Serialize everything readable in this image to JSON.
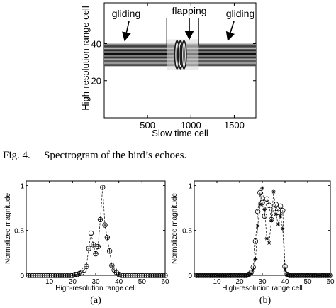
{
  "chart_data": [
    {
      "type": "heatmap",
      "panel": "fig4",
      "xlabel": "Slow time cell",
      "ylabel": "High-resolution range cell",
      "xlim": [
        0,
        1750
      ],
      "ylim": [
        0,
        62
      ],
      "xticks": [
        500,
        1000,
        1500
      ],
      "yticks": [
        20,
        40
      ],
      "annotations": [
        "gliding",
        "flapping",
        "gliding"
      ],
      "segment_boundaries_x": [
        720,
        1090
      ],
      "echo_band_y": [
        28,
        40
      ],
      "flapping_peaks_x": [
        840,
        880,
        920
      ]
    },
    {
      "type": "scatter",
      "panel": "a",
      "xlabel": "High-resolution range cell",
      "ylabel": "Normalized magnitude",
      "xlim": [
        0,
        60
      ],
      "ylim": [
        0,
        1.05
      ],
      "xticks": [
        10,
        20,
        30,
        40,
        50,
        60
      ],
      "yticks": [
        0,
        0.5,
        1
      ],
      "series": [
        {
          "marker": "circle-plus",
          "x": [
            1,
            2,
            3,
            4,
            5,
            6,
            7,
            8,
            9,
            10,
            11,
            12,
            13,
            14,
            15,
            16,
            17,
            18,
            19,
            20,
            21,
            22,
            23,
            24,
            25,
            26,
            27,
            28,
            29,
            30,
            31,
            32,
            33,
            34,
            35,
            36,
            37,
            38,
            39,
            40,
            41,
            42,
            43,
            44,
            45,
            46,
            47,
            48,
            49,
            50,
            51,
            52,
            53,
            54,
            55,
            56,
            57,
            58,
            59,
            60
          ],
          "values": [
            0,
            0,
            0,
            0,
            0,
            0,
            0,
            0,
            0,
            0,
            0,
            0,
            0,
            0,
            0,
            0,
            0,
            0,
            0,
            0,
            0.01,
            0.01,
            0.02,
            0.03,
            0.06,
            0.1,
            0.3,
            0.47,
            0.34,
            0.24,
            0.32,
            0.62,
            0.98,
            0.56,
            0.42,
            0.27,
            0.11,
            0.06,
            0.03,
            0.01,
            0,
            0,
            0,
            0,
            0,
            0,
            0,
            0,
            0,
            0,
            0,
            0,
            0,
            0,
            0,
            0,
            0,
            0,
            0,
            0
          ]
        }
      ],
      "label": "(a)"
    },
    {
      "type": "scatter",
      "panel": "b",
      "xlabel": "High-resolution range cell",
      "ylabel": "Normalized magnitude",
      "xlim": [
        0,
        60
      ],
      "ylim": [
        0,
        1.05
      ],
      "xticks": [
        10,
        20,
        30,
        40,
        50,
        60
      ],
      "yticks": [
        0,
        0.5,
        1
      ],
      "series": [
        {
          "marker": "circle",
          "x": [
            1,
            2,
            3,
            4,
            5,
            6,
            7,
            8,
            9,
            10,
            11,
            12,
            13,
            14,
            15,
            16,
            17,
            18,
            19,
            20,
            21,
            22,
            23,
            24,
            25,
            26,
            27,
            28,
            29,
            30,
            31,
            32,
            33,
            34,
            35,
            36,
            37,
            38,
            39,
            40,
            41,
            42,
            43,
            44,
            45,
            46,
            47,
            48,
            49,
            50,
            51,
            52,
            53,
            54,
            55,
            56,
            57,
            58,
            59,
            60
          ],
          "values": [
            0,
            0,
            0,
            0,
            0,
            0,
            0,
            0,
            0,
            0,
            0,
            0,
            0,
            0,
            0,
            0,
            0,
            0,
            0,
            0,
            0,
            0,
            0,
            0.01,
            0.03,
            0.09,
            0.38,
            0.71,
            0.92,
            0.81,
            0.66,
            0.85,
            0.78,
            0.62,
            0.74,
            0.79,
            0.7,
            0.77,
            0.72,
            0.1,
            0.01,
            0,
            0,
            0,
            0,
            0,
            0,
            0,
            0,
            0,
            0,
            0,
            0,
            0,
            0,
            0,
            0,
            0,
            0,
            0
          ]
        },
        {
          "marker": "star",
          "x": [
            1,
            2,
            3,
            4,
            5,
            6,
            7,
            8,
            9,
            10,
            11,
            12,
            13,
            14,
            15,
            16,
            17,
            18,
            19,
            20,
            21,
            22,
            23,
            24,
            25,
            26,
            27,
            28,
            29,
            30,
            31,
            32,
            33,
            34,
            35,
            36,
            37,
            38,
            39,
            40,
            41,
            42,
            43,
            44,
            45,
            46,
            47,
            48,
            49,
            50,
            51,
            52,
            53,
            54,
            55,
            56,
            57,
            58,
            59,
            60
          ],
          "values": [
            0,
            0,
            0,
            0,
            0,
            0,
            0,
            0,
            0,
            0,
            0,
            0,
            0,
            0,
            0,
            0,
            0,
            0,
            0,
            0,
            0,
            0,
            0,
            0,
            0.02,
            0.06,
            0.18,
            0.55,
            0.79,
            0.97,
            0.73,
            0.41,
            0.36,
            0.61,
            0.93,
            0.68,
            0.57,
            0.66,
            0.52,
            0.06,
            0,
            0,
            0,
            0,
            0,
            0,
            0,
            0,
            0,
            0,
            0,
            0,
            0,
            0,
            0,
            0,
            0,
            0,
            0,
            0
          ]
        }
      ],
      "label": "(b)"
    }
  ],
  "caption": {
    "number": "Fig. 4.",
    "text": "Spectrogram of the bird’s echoes."
  }
}
